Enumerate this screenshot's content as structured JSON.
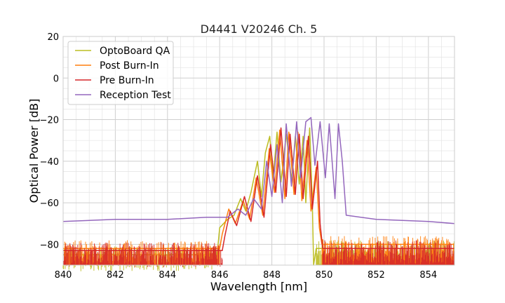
{
  "chart_data": {
    "type": "line",
    "title": "D4441 V20246 Ch. 5",
    "xlabel": "Wavelength [nm]",
    "ylabel": "Optical Power [dB]",
    "xlim": [
      840,
      855
    ],
    "ylim": [
      -90,
      20
    ],
    "xticks": [
      840,
      842,
      844,
      846,
      848,
      850,
      852,
      854
    ],
    "yticks": [
      20,
      0,
      -20,
      -40,
      -60,
      -80
    ],
    "ytick_labels": [
      "20",
      "0",
      "−20",
      "−40",
      "−60",
      "−80"
    ],
    "grid": true,
    "legend_position": "top-left",
    "series": [
      {
        "name": "OptoBoard QA",
        "color": "#bcbd22",
        "x": [
          840,
          845.9,
          846.0,
          846.3,
          846.55,
          846.8,
          847.0,
          847.2,
          847.45,
          847.6,
          847.75,
          847.92,
          848.05,
          848.2,
          848.35,
          848.55,
          848.75,
          848.9,
          849.05,
          849.2,
          849.3,
          849.45,
          849.55,
          849.6,
          849.7,
          855
        ],
        "y": [
          -85,
          -85,
          -72,
          -68,
          -66,
          -58,
          -64,
          -55,
          -40,
          -57,
          -36,
          -28,
          -48,
          -26,
          -50,
          -27,
          -49,
          -28,
          -51,
          -28,
          -60,
          -24,
          -60,
          -90,
          -82,
          -82
        ]
      },
      {
        "name": "Post Burn-In",
        "color": "#ff7f0e",
        "x": [
          840,
          846.0,
          846.1,
          846.35,
          846.6,
          846.9,
          847.15,
          847.4,
          847.65,
          847.9,
          848.1,
          848.3,
          848.5,
          848.65,
          848.85,
          849.0,
          849.15,
          849.35,
          849.5,
          849.7,
          849.82,
          849.92,
          855
        ],
        "y": [
          -82,
          -82,
          -75,
          -63,
          -70,
          -59,
          -68,
          -48,
          -66,
          -34,
          -55,
          -25,
          -58,
          -26,
          -56,
          -26,
          -59,
          -30,
          -64,
          -43,
          -72,
          -80,
          -80
        ]
      },
      {
        "name": "Pre Burn-In",
        "color": "#d62728",
        "x": [
          840,
          846.1,
          846.2,
          846.4,
          846.65,
          846.95,
          847.2,
          847.45,
          847.7,
          847.95,
          848.15,
          848.35,
          848.55,
          848.7,
          848.9,
          849.05,
          849.2,
          849.4,
          849.55,
          849.75,
          849.85,
          849.95,
          855
        ],
        "y": [
          -83,
          -83,
          -76,
          -64,
          -71,
          -57,
          -69,
          -47,
          -67,
          -32,
          -55,
          -24,
          -57,
          -27,
          -56,
          -27,
          -58,
          -28,
          -63,
          -40,
          -70,
          -82,
          -82
        ]
      },
      {
        "name": "Reception Test",
        "color": "#9467bd",
        "x": [
          840,
          842,
          844,
          845.5,
          846.3,
          846.7,
          847.0,
          847.3,
          847.6,
          847.8,
          848.0,
          848.2,
          848.4,
          848.55,
          848.75,
          848.95,
          849.1,
          849.3,
          849.5,
          849.65,
          849.85,
          850.05,
          850.2,
          850.42,
          850.55,
          850.7,
          850.85,
          852,
          854,
          855
        ],
        "y": [
          -69,
          -68,
          -68,
          -67,
          -67,
          -63,
          -66,
          -58,
          -63,
          -40,
          -57,
          -32,
          -60,
          -22,
          -52,
          -21,
          -48,
          -21,
          -19,
          -42,
          -21,
          -48,
          -22,
          -58,
          -22,
          -40,
          -66,
          -68,
          -69,
          -70
        ]
      }
    ]
  }
}
